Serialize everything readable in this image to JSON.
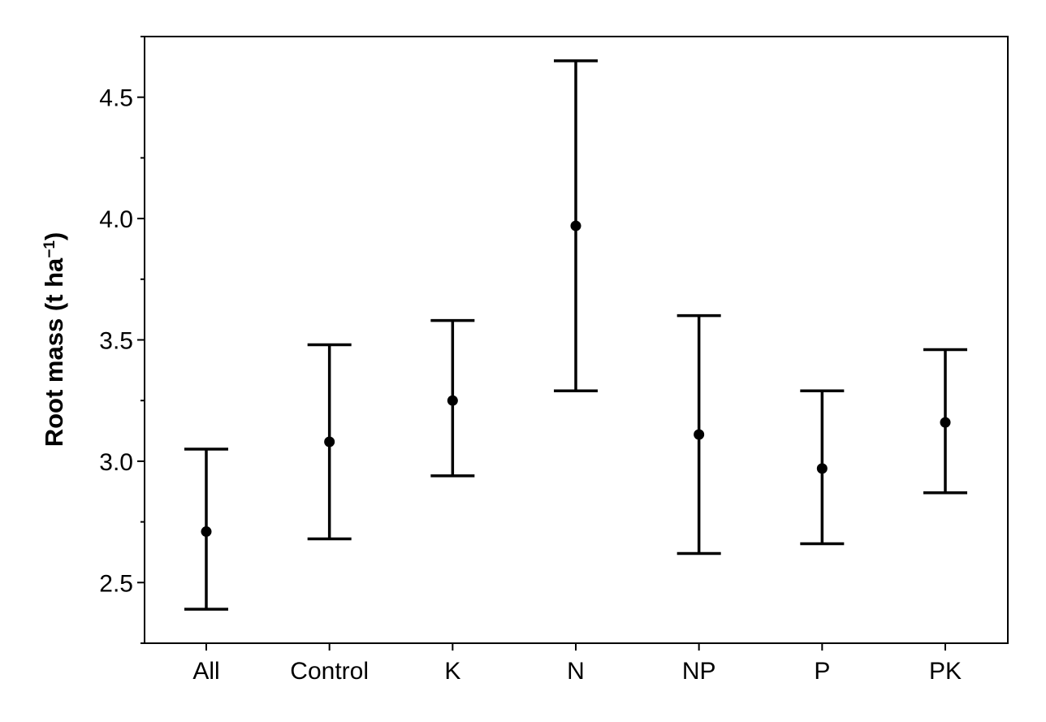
{
  "chart_data": {
    "type": "errorbar",
    "title": "",
    "xlabel": "",
    "ylabel": "Root mass (t ha",
    "ylabel_superscript": "−1",
    "ylabel_close": ")",
    "categories": [
      "All",
      "Control",
      "K",
      "N",
      "NP",
      "P",
      "PK"
    ],
    "series": [
      {
        "mean": [
          2.71,
          3.08,
          3.25,
          3.97,
          3.11,
          2.97,
          3.16
        ],
        "lower": [
          2.39,
          2.68,
          2.94,
          3.29,
          2.62,
          2.66,
          2.87
        ],
        "upper": [
          3.05,
          3.48,
          3.58,
          4.65,
          3.6,
          3.29,
          3.46
        ]
      }
    ],
    "ylim": [
      2.25,
      4.75
    ],
    "yticks": [
      "2.5",
      "3.0",
      "3.5",
      "4.0",
      "4.5"
    ],
    "grid": false,
    "legend": "none"
  },
  "colors": {
    "marker": "#000000",
    "axis": "#000000",
    "background": "#ffffff"
  }
}
